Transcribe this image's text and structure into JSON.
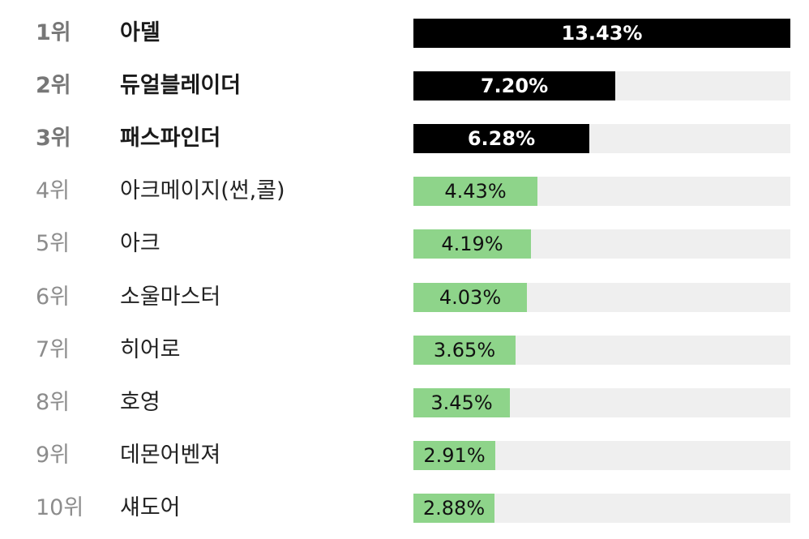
{
  "chart_data": {
    "type": "bar",
    "orientation": "horizontal",
    "xlim": [
      0,
      13.43
    ],
    "grid": false,
    "colors": {
      "top3": "#000000",
      "others": "#8ed48a",
      "track": "#efefef"
    },
    "rows": [
      {
        "rank": "1위",
        "name": "아델",
        "value": 13.43,
        "label": "13.43%"
      },
      {
        "rank": "2위",
        "name": "듀얼블레이더",
        "value": 7.2,
        "label": "7.20%"
      },
      {
        "rank": "3위",
        "name": "패스파인더",
        "value": 6.28,
        "label": "6.28%"
      },
      {
        "rank": "4위",
        "name": "아크메이지(썬,콜)",
        "value": 4.43,
        "label": "4.43%"
      },
      {
        "rank": "5위",
        "name": "아크",
        "value": 4.19,
        "label": "4.19%"
      },
      {
        "rank": "6위",
        "name": "소울마스터",
        "value": 4.03,
        "label": "4.03%"
      },
      {
        "rank": "7위",
        "name": "히어로",
        "value": 3.65,
        "label": "3.65%"
      },
      {
        "rank": "8위",
        "name": "호영",
        "value": 3.45,
        "label": "3.45%"
      },
      {
        "rank": "9위",
        "name": "데몬어벤져",
        "value": 2.91,
        "label": "2.91%"
      },
      {
        "rank": "10위",
        "name": "섀도어",
        "value": 2.88,
        "label": "2.88%"
      }
    ]
  }
}
